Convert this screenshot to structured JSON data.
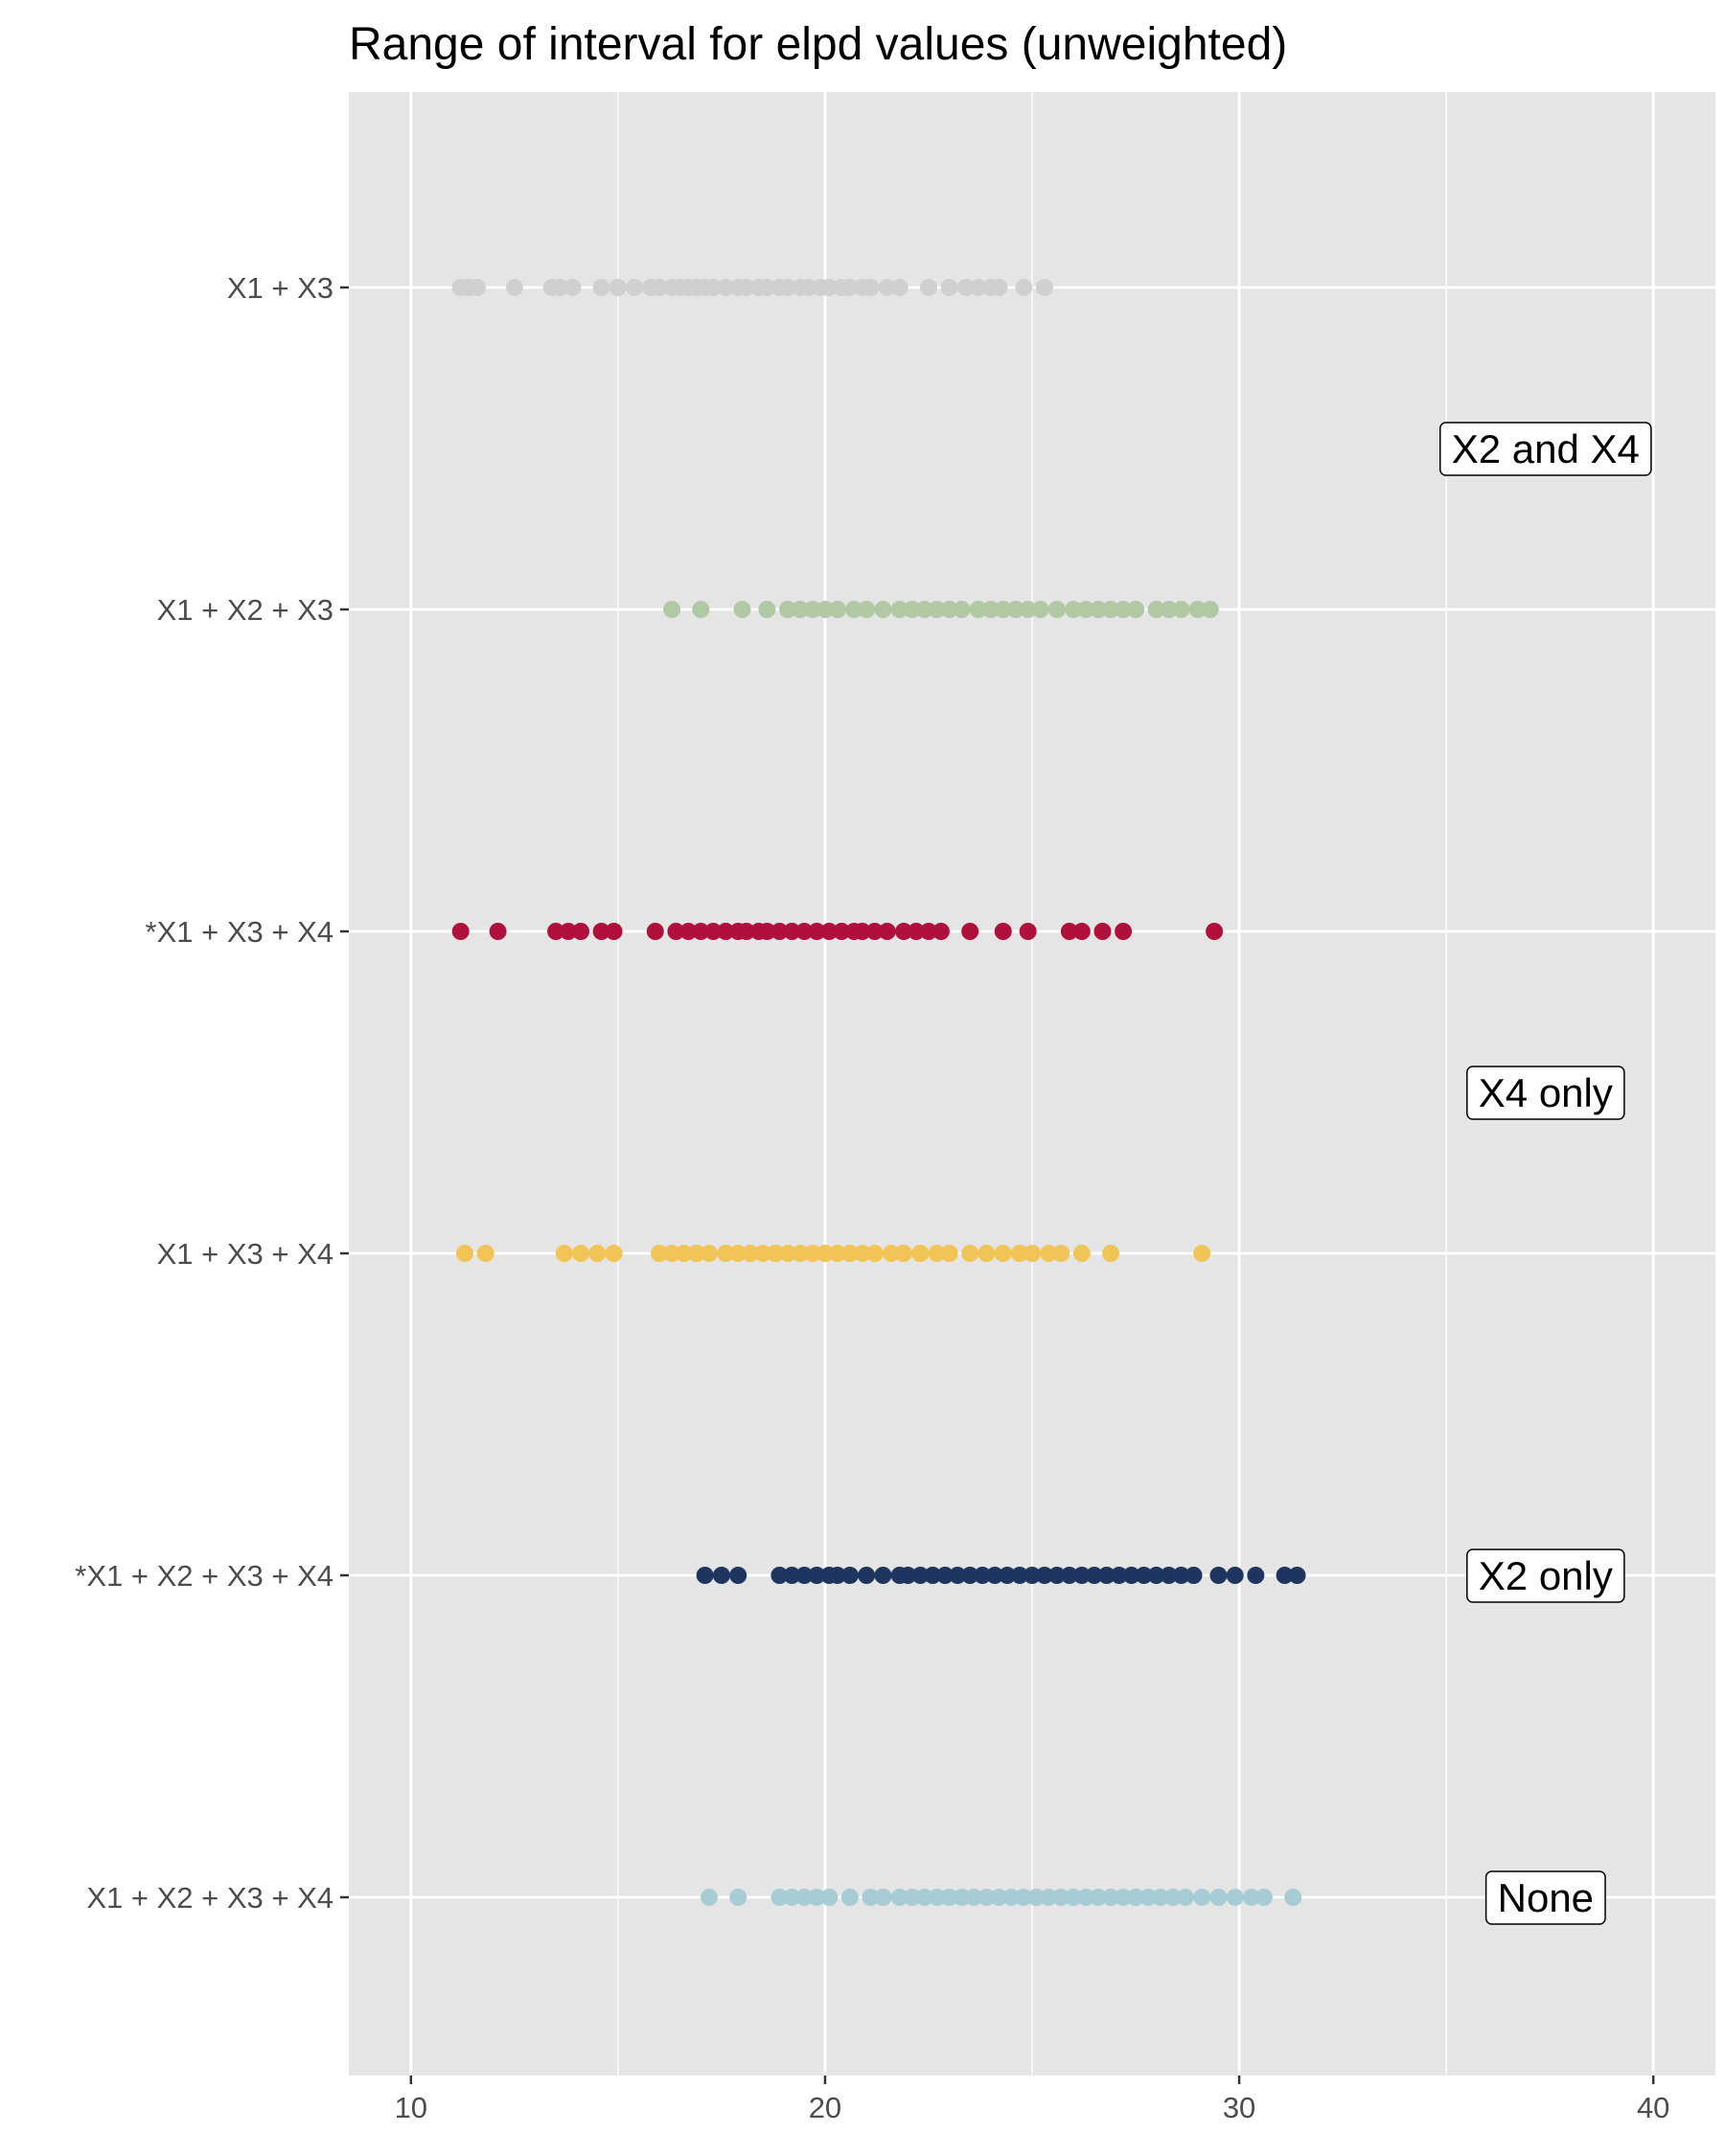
{
  "chart_data": {
    "type": "scatter",
    "title": "Range of interval for elpd values (unweighted)",
    "xlabel": "",
    "ylabel": "",
    "xlim": [
      8.5,
      41.5
    ],
    "x_ticks": [
      10,
      20,
      30,
      40
    ],
    "x_minor_ticks": [
      15,
      25,
      35
    ],
    "grid": true,
    "legend": "none",
    "background_color": "#e5e5e5",
    "grid_color": "#ffffff",
    "categories": [
      "X1 + X3",
      "X1 + X2 + X3",
      "*X1 + X3 + X4",
      "X1 + X3 + X4",
      "*X1 + X2 + X3 + X4",
      "X1 + X2 + X3 + X4"
    ],
    "series": [
      {
        "category": "X1 + X3",
        "color": "#d0d0d0",
        "values": [
          11.2,
          11.4,
          11.6,
          12.5,
          13.4,
          13.6,
          13.9,
          14.6,
          15.0,
          15.4,
          15.8,
          16.0,
          16.3,
          16.5,
          16.7,
          16.9,
          17.1,
          17.3,
          17.6,
          17.9,
          18.1,
          18.4,
          18.6,
          18.9,
          19.1,
          19.4,
          19.6,
          19.9,
          20.1,
          20.4,
          20.6,
          20.9,
          21.1,
          21.5,
          21.8,
          22.5,
          23.0,
          23.4,
          23.7,
          24.0,
          24.2,
          24.8,
          25.3
        ]
      },
      {
        "category": "X1 + X2 + X3",
        "color": "#b0c8a4",
        "values": [
          16.3,
          17.0,
          18.0,
          18.6,
          19.1,
          19.4,
          19.7,
          20.0,
          20.3,
          20.7,
          21.0,
          21.4,
          21.8,
          22.1,
          22.4,
          22.7,
          23.0,
          23.3,
          23.7,
          24.0,
          24.3,
          24.6,
          24.9,
          25.2,
          25.6,
          26.0,
          26.3,
          26.6,
          26.9,
          27.2,
          27.5,
          28.0,
          28.3,
          28.6,
          29.0,
          29.3
        ]
      },
      {
        "category": "*X1 + X3 + X4",
        "color": "#b0103c",
        "values": [
          11.2,
          12.1,
          13.5,
          13.8,
          14.1,
          14.6,
          14.9,
          15.9,
          16.4,
          16.7,
          17.0,
          17.3,
          17.6,
          17.9,
          18.1,
          18.4,
          18.6,
          18.9,
          19.2,
          19.5,
          19.8,
          20.1,
          20.4,
          20.7,
          20.9,
          21.2,
          21.5,
          21.9,
          22.2,
          22.5,
          22.8,
          23.5,
          24.3,
          24.9,
          25.9,
          26.2,
          26.7,
          27.2,
          29.4
        ]
      },
      {
        "category": "X1 + X3 + X4",
        "color": "#f0c456",
        "values": [
          11.3,
          11.8,
          13.7,
          14.1,
          14.5,
          14.9,
          16.0,
          16.3,
          16.6,
          16.9,
          17.2,
          17.6,
          17.9,
          18.2,
          18.5,
          18.8,
          19.1,
          19.4,
          19.7,
          20.0,
          20.3,
          20.6,
          20.9,
          21.2,
          21.6,
          21.9,
          22.3,
          22.7,
          23.0,
          23.5,
          23.9,
          24.3,
          24.7,
          25.0,
          25.4,
          25.7,
          26.2,
          26.9,
          29.1
        ]
      },
      {
        "category": "*X1 + X2 + X3 + X4",
        "color": "#1e3560",
        "values": [
          17.1,
          17.5,
          17.9,
          18.9,
          19.2,
          19.5,
          19.8,
          20.1,
          20.3,
          20.6,
          21.0,
          21.4,
          21.8,
          22.0,
          22.3,
          22.6,
          22.9,
          23.2,
          23.5,
          23.8,
          24.1,
          24.4,
          24.7,
          25.0,
          25.3,
          25.6,
          25.9,
          26.2,
          26.5,
          26.8,
          27.1,
          27.4,
          27.7,
          28.0,
          28.3,
          28.6,
          28.9,
          29.5,
          29.9,
          30.4,
          31.1,
          31.4
        ]
      },
      {
        "category": "X1 + X2 + X3 + X4",
        "color": "#a8ccd4",
        "values": [
          17.2,
          17.9,
          18.9,
          19.2,
          19.5,
          19.8,
          20.1,
          20.6,
          21.1,
          21.4,
          21.8,
          22.1,
          22.4,
          22.7,
          23.0,
          23.3,
          23.6,
          23.9,
          24.2,
          24.5,
          24.8,
          25.1,
          25.4,
          25.7,
          26.0,
          26.3,
          26.6,
          26.9,
          27.2,
          27.5,
          27.8,
          28.1,
          28.4,
          28.7,
          29.1,
          29.5,
          29.9,
          30.3,
          30.6,
          31.3
        ]
      }
    ],
    "annotations": [
      {
        "text": "X2 and X4",
        "x": 37.4,
        "y_between": [
          "X1 + X3",
          "X1 + X2 + X3"
        ]
      },
      {
        "text": "X4 only",
        "x": 37.4,
        "y_between": [
          "*X1 + X3 + X4",
          "X1 + X3 + X4"
        ]
      },
      {
        "text": "X2 only",
        "x": 37.4,
        "y_category": "*X1 + X2 + X3 + X4"
      },
      {
        "text": "None",
        "x": 37.4,
        "y_category": "X1 + X2 + X3 + X4"
      }
    ]
  }
}
